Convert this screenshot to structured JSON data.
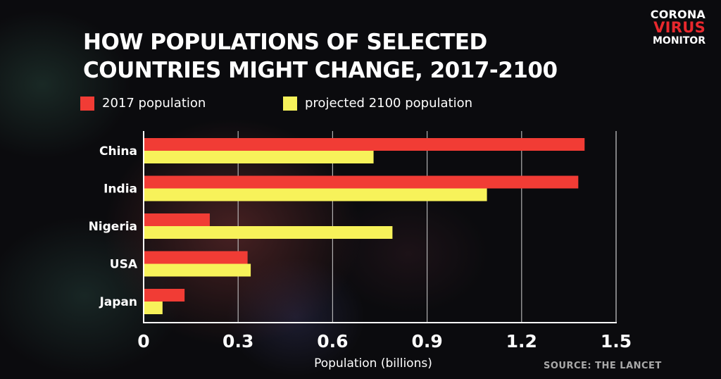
{
  "title": "HOW POPULATIONS OF SELECTED\nCOUNTRIES MIGHT CHANGE, 2017-2100",
  "logo": {
    "line1": "CORONA",
    "line2": "VIRUS",
    "line3": "MONITOR"
  },
  "source": "SOURCE: THE LANCET",
  "colors": {
    "series_2017": "#f13c35",
    "series_2100": "#f7f25a",
    "axis": "#ffffff",
    "grid": "#cfcfcf"
  },
  "chart_data": {
    "type": "bar",
    "orientation": "horizontal",
    "categories": [
      "China",
      "India",
      "Nigeria",
      "USA",
      "Japan"
    ],
    "series": [
      {
        "name": "2017 population",
        "values": [
          1.4,
          1.38,
          0.21,
          0.33,
          0.13
        ]
      },
      {
        "name": "projected 2100 population",
        "values": [
          0.73,
          1.09,
          0.79,
          0.34,
          0.06
        ]
      }
    ],
    "xlabel": "Population (billions)",
    "ylabel": "",
    "xlim": [
      0,
      1.5
    ],
    "xticks": [
      "0",
      "0.3",
      "0.6",
      "0.9",
      "1.2",
      "1.5"
    ],
    "xtick_values": [
      0,
      0.3,
      0.6,
      0.9,
      1.2,
      1.5
    ],
    "grid": true,
    "legend_position": "top-left"
  }
}
